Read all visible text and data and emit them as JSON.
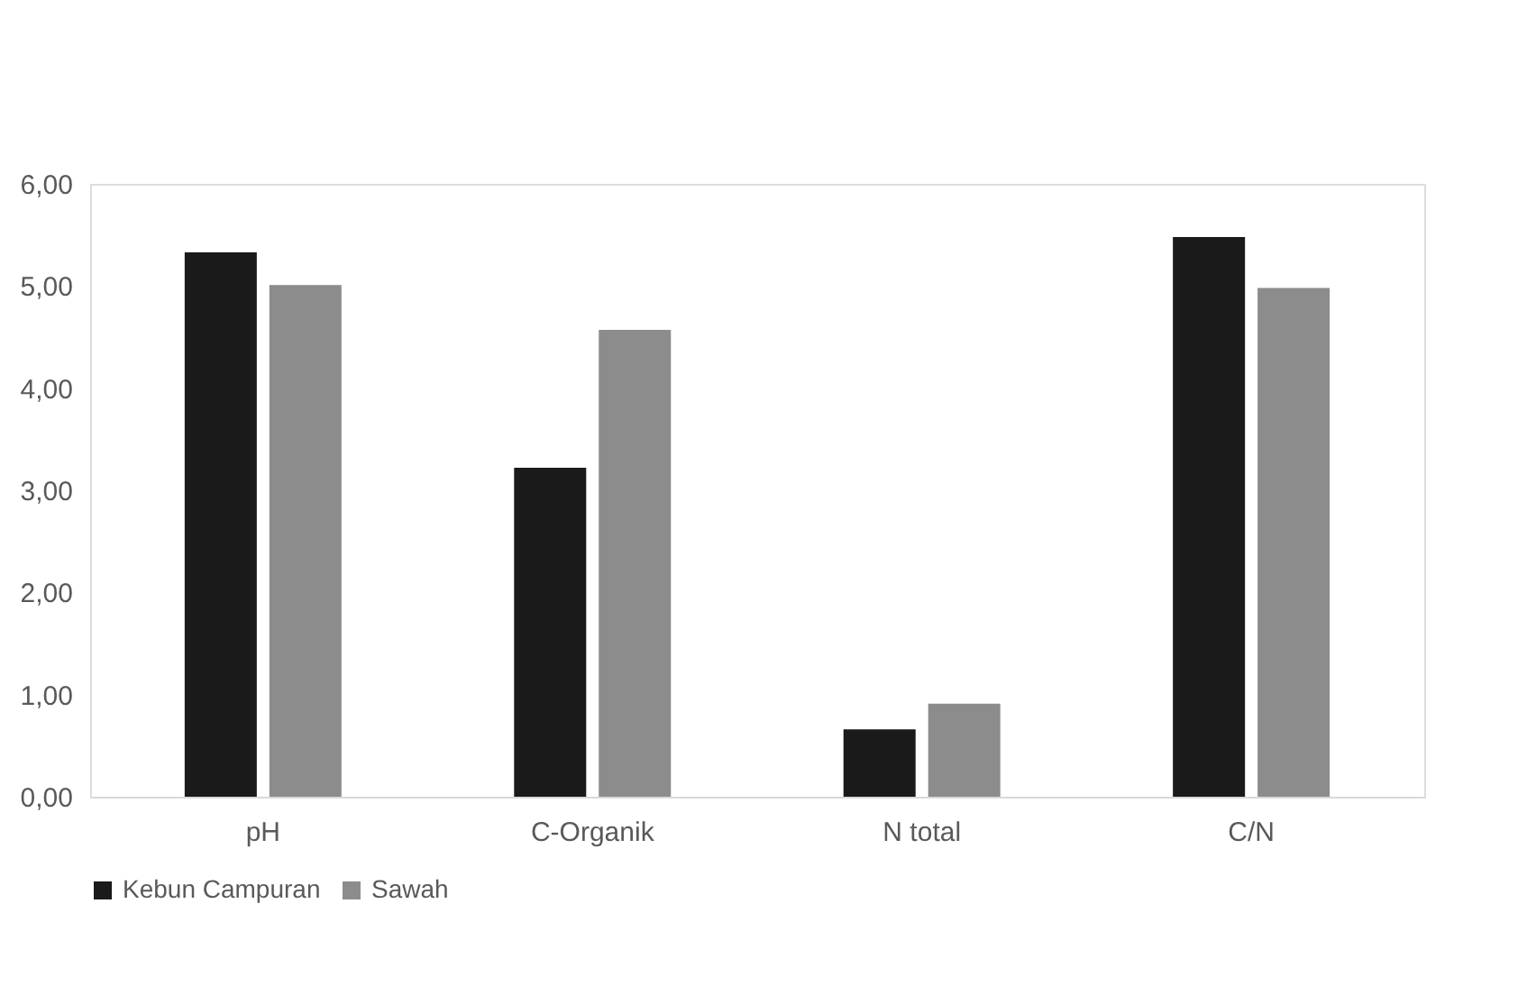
{
  "chart_data": {
    "type": "bar",
    "categories": [
      "pH",
      "C-Organik",
      "N total",
      "C/N"
    ],
    "series": [
      {
        "name": "Kebun Campuran",
        "color": "#1a1a1a",
        "values": [
          5.33,
          3.22,
          0.66,
          5.48
        ]
      },
      {
        "name": "Sawah",
        "color": "#8c8c8c",
        "values": [
          5.01,
          4.57,
          0.91,
          4.98
        ]
      }
    ],
    "ylim": [
      0,
      6
    ],
    "yticks": [
      {
        "value": 0,
        "label": "0,00"
      },
      {
        "value": 1,
        "label": "1,00"
      },
      {
        "value": 2,
        "label": "2,00"
      },
      {
        "value": 3,
        "label": "3,00"
      },
      {
        "value": 4,
        "label": "4,00"
      },
      {
        "value": 5,
        "label": "5,00"
      },
      {
        "value": 6,
        "label": "6,00"
      }
    ],
    "grid": false,
    "legend": "bottom"
  }
}
